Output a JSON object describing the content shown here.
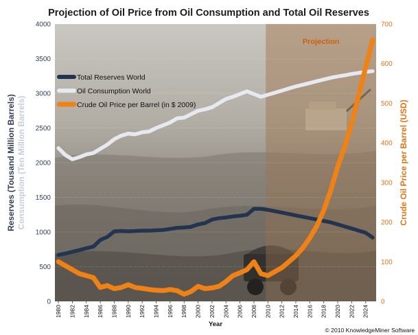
{
  "chart_data": {
    "type": "line",
    "title": "Projection of Oil Price from Oil Consumption and Total Oil Reserves",
    "xlabel": "Year",
    "ylabel_left": "Reserves (Tousand Million Barrels)",
    "ylabel_left_secondary": "Consumption (Ten Million Barrels)",
    "ylabel_right": "Crude Oil Price per Barrel (USD)",
    "projection_label": "Projection",
    "projection_start": 2010,
    "copyright": "© 2010 KnowledgeMiner Software",
    "xlim": [
      1979.5,
      2025.5
    ],
    "ylim_left": [
      0,
      4000
    ],
    "ylim_right": [
      0,
      700
    ],
    "left_ticks": [
      0,
      500,
      1000,
      1500,
      2000,
      2500,
      3000,
      3500,
      4000
    ],
    "right_ticks": [
      0,
      100,
      200,
      300,
      400,
      500,
      600,
      700
    ],
    "x_ticks": [
      1980,
      1982,
      1984,
      1986,
      1988,
      1990,
      1992,
      1994,
      1996,
      1998,
      2000,
      2002,
      2004,
      2006,
      2008,
      2010,
      2012,
      2014,
      2016,
      2018,
      2020,
      2022,
      2024
    ],
    "legend_position": "upper-left",
    "colors": {
      "reserves": "#22344f",
      "consumption": "#e6eaf0",
      "price": "#ef8216",
      "left_axis_text": "#2f3f58",
      "right_axis_text": "#e27417",
      "consumption_label": "#c4cfdc",
      "projection_text": "#c96312"
    },
    "series": [
      {
        "name": "Total Reserves World",
        "axis": "left",
        "x": [
          1980,
          1981,
          1982,
          1983,
          1984,
          1985,
          1986,
          1987,
          1988,
          1989,
          1990,
          1991,
          1992,
          1993,
          1994,
          1995,
          1996,
          1997,
          1998,
          1999,
          2000,
          2001,
          2002,
          2003,
          2004,
          2005,
          2006,
          2007,
          2008,
          2009,
          2010,
          2011,
          2012,
          2013,
          2014,
          2015,
          2016,
          2017,
          2018,
          2019,
          2020,
          2021,
          2022,
          2023,
          2024,
          2025
        ],
        "values": [
          670,
          690,
          715,
          740,
          765,
          790,
          885,
          930,
          1010,
          1015,
          1010,
          1015,
          1020,
          1020,
          1025,
          1030,
          1045,
          1060,
          1065,
          1075,
          1110,
          1130,
          1180,
          1200,
          1210,
          1225,
          1235,
          1250,
          1335,
          1335,
          1320,
          1300,
          1280,
          1260,
          1240,
          1220,
          1200,
          1180,
          1160,
          1140,
          1110,
          1080,
          1050,
          1020,
          990,
          920
        ]
      },
      {
        "name": "Oil Consumption World",
        "axis": "left",
        "x": [
          1980,
          1981,
          1982,
          1983,
          1984,
          1985,
          1986,
          1987,
          1988,
          1989,
          1990,
          1991,
          1992,
          1993,
          1994,
          1995,
          1996,
          1997,
          1998,
          1999,
          2000,
          2001,
          2002,
          2003,
          2004,
          2005,
          2006,
          2007,
          2008,
          2009,
          2010,
          2011,
          2012,
          2013,
          2014,
          2015,
          2016,
          2017,
          2018,
          2019,
          2020,
          2021,
          2022,
          2023,
          2024,
          2025
        ],
        "values": [
          2210,
          2110,
          2050,
          2080,
          2120,
          2140,
          2200,
          2260,
          2340,
          2390,
          2420,
          2410,
          2440,
          2450,
          2500,
          2540,
          2580,
          2640,
          2650,
          2700,
          2750,
          2770,
          2800,
          2860,
          2920,
          2950,
          2990,
          3030,
          2990,
          2950,
          2980,
          3010,
          3040,
          3070,
          3100,
          3125,
          3150,
          3175,
          3200,
          3225,
          3245,
          3260,
          3280,
          3295,
          3310,
          3320
        ]
      },
      {
        "name": "Crude Oil Price per Barrel (in $ 2009)",
        "axis": "right",
        "x": [
          1980,
          1981,
          1982,
          1983,
          1984,
          1985,
          1986,
          1987,
          1988,
          1989,
          1990,
          1991,
          1992,
          1993,
          1994,
          1995,
          1996,
          1997,
          1998,
          1999,
          2000,
          2001,
          2002,
          2003,
          2004,
          2005,
          2006,
          2007,
          2008,
          2009,
          2010,
          2011,
          2012,
          2013,
          2014,
          2015,
          2016,
          2017,
          2018,
          2019,
          2020,
          2021,
          2022,
          2023,
          2024,
          2025
        ],
        "values": [
          100,
          90,
          80,
          70,
          65,
          60,
          35,
          40,
          32,
          35,
          42,
          35,
          33,
          30,
          28,
          27,
          30,
          27,
          18,
          25,
          38,
          32,
          34,
          38,
          50,
          65,
          72,
          80,
          100,
          70,
          65,
          75,
          85,
          100,
          115,
          135,
          160,
          190,
          230,
          280,
          340,
          390,
          450,
          520,
          590,
          660
        ]
      }
    ]
  }
}
